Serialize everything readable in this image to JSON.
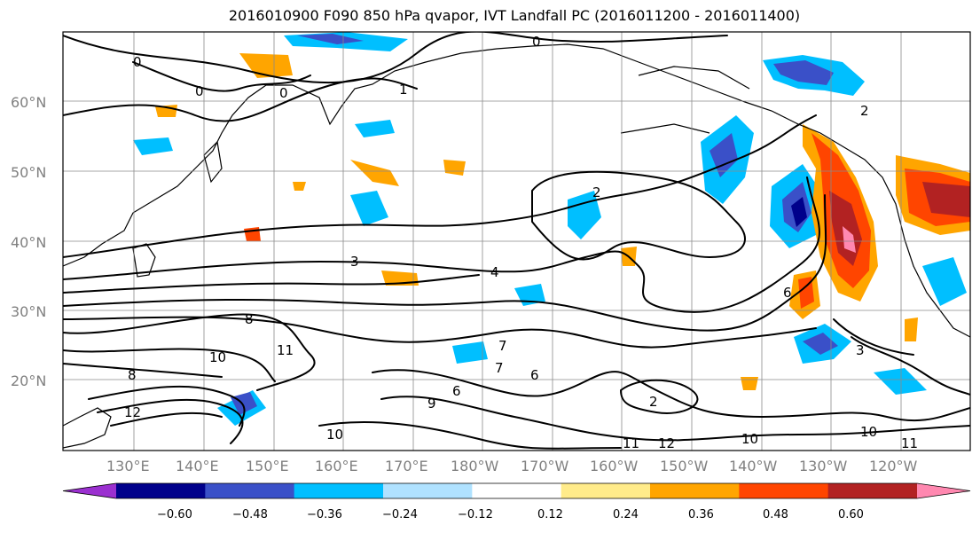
{
  "figure": {
    "title": "2016010900 F090 850 hPa qvapor, IVT Landfall PC (2016011200 - 2016011400)"
  },
  "map": {
    "lat_labels": [
      "60°N",
      "50°N",
      "40°N",
      "30°N",
      "20°N"
    ],
    "lon_labels": [
      "130°E",
      "140°E",
      "150°E",
      "160°E",
      "170°E",
      "180°W",
      "170°W",
      "160°W",
      "150°W",
      "140°W",
      "130°W",
      "120°W"
    ],
    "grid": "on",
    "contour_labels": [
      "0",
      "0",
      "0",
      "0",
      "1",
      "2",
      "2",
      "3",
      "4",
      "6",
      "6",
      "7",
      "7",
      "8",
      "8",
      "9",
      "10",
      "10",
      "10",
      "10",
      "11",
      "11",
      "11",
      "12",
      "12",
      "6",
      "2",
      "3"
    ]
  },
  "colorbar": {
    "ticks": [
      "−0.60",
      "−0.48",
      "−0.36",
      "−0.24",
      "−0.12",
      "0.12",
      "0.24",
      "0.36",
      "0.48",
      "0.60"
    ],
    "colors": [
      "#9b30d0",
      "#00008b",
      "#3a50c8",
      "#00bfff",
      "#b0e2ff",
      "#ffffff",
      "#ffeb8a",
      "#ffa500",
      "#ff4500",
      "#b22222",
      "#ff88b0"
    ]
  }
}
